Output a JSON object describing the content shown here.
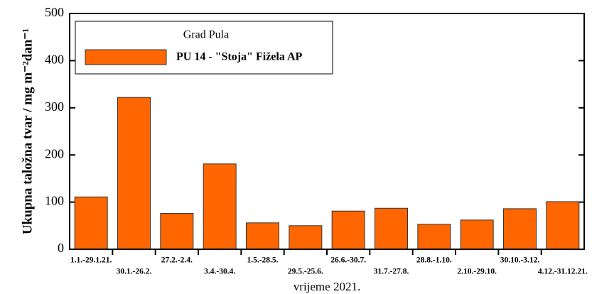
{
  "chart_data": {
    "type": "bar",
    "y_label": "Ukupna taložna tvar / mg m⁻²dan⁻¹",
    "x_label": "vrijeme 2021.",
    "legend_title": "Grad Pula",
    "categories": [
      "1.1.-29.1.21.",
      "30.1.-26.2.",
      "27.2.-2.4.",
      "3.4.-30.4.",
      "1.5.-28.5.",
      "29.5.-25.6.",
      "26.6.-30.7.",
      "31.7.-27.8.",
      "28.8.-1.10.",
      "2.10.-29.10.",
      "30.10.-3.12.",
      "4.12.-31.12.21."
    ],
    "series": [
      {
        "name": "PU 14 - \"Stoja\" Fižela AP",
        "color": "#ff6600",
        "values": [
          111,
          322,
          76,
          181,
          56,
          50,
          81,
          87,
          53,
          62,
          86,
          101
        ]
      }
    ],
    "ylim": [
      0,
      500
    ],
    "yticks": [
      0,
      100,
      200,
      300,
      400,
      500
    ]
  }
}
